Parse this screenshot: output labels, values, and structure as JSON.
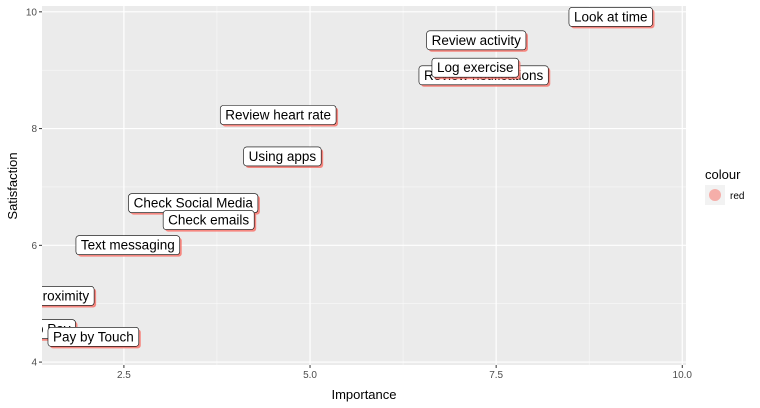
{
  "chart_data": {
    "type": "scatter",
    "title": "",
    "xlabel": "Importance",
    "ylabel": "Satisfaction",
    "xlim": [
      1.4,
      10.05
    ],
    "ylim": [
      3.95,
      10.1
    ],
    "x_ticks": [
      2.5,
      5.0,
      7.5,
      10.0
    ],
    "x_tick_labels": [
      "2.5",
      "5.0",
      "7.5",
      "10.0"
    ],
    "y_ticks": [
      4,
      6,
      8,
      10
    ],
    "y_tick_labels": [
      "4",
      "6",
      "8",
      "10"
    ],
    "grid": true,
    "legend": {
      "title": "colour",
      "placement": "right",
      "entries": [
        {
          "label": "red",
          "color": "#F8766D"
        }
      ]
    },
    "colors": {
      "point": "#F8766D",
      "panel": "#EBEBEB",
      "grid": "#FFFFFF"
    },
    "points": [
      {
        "label": "Look at time",
        "x": 9.6,
        "y": 9.75
      },
      {
        "label": "Review activity",
        "x": 7.9,
        "y": 9.35
      },
      {
        "label": "Review notifications",
        "x": 8.2,
        "y": 8.75
      },
      {
        "label": "Log exercise",
        "x": 7.8,
        "y": 8.88
      },
      {
        "label": "Review heart rate",
        "x": 5.35,
        "y": 8.07
      },
      {
        "label": "Using apps",
        "x": 5.15,
        "y": 7.36
      },
      {
        "label": "Check Social Media",
        "x": 4.3,
        "y": 6.56
      },
      {
        "label": "Check emails",
        "x": 4.25,
        "y": 6.27
      },
      {
        "label": "Text messaging",
        "x": 3.25,
        "y": 5.84
      },
      {
        "label": "proximity",
        "x": 2.1,
        "y": 4.97
      },
      {
        "label": "Tap to Pay",
        "x": 1.85,
        "y": 4.4
      },
      {
        "label": "Pay by Touch",
        "x": 2.7,
        "y": 4.27
      }
    ]
  }
}
